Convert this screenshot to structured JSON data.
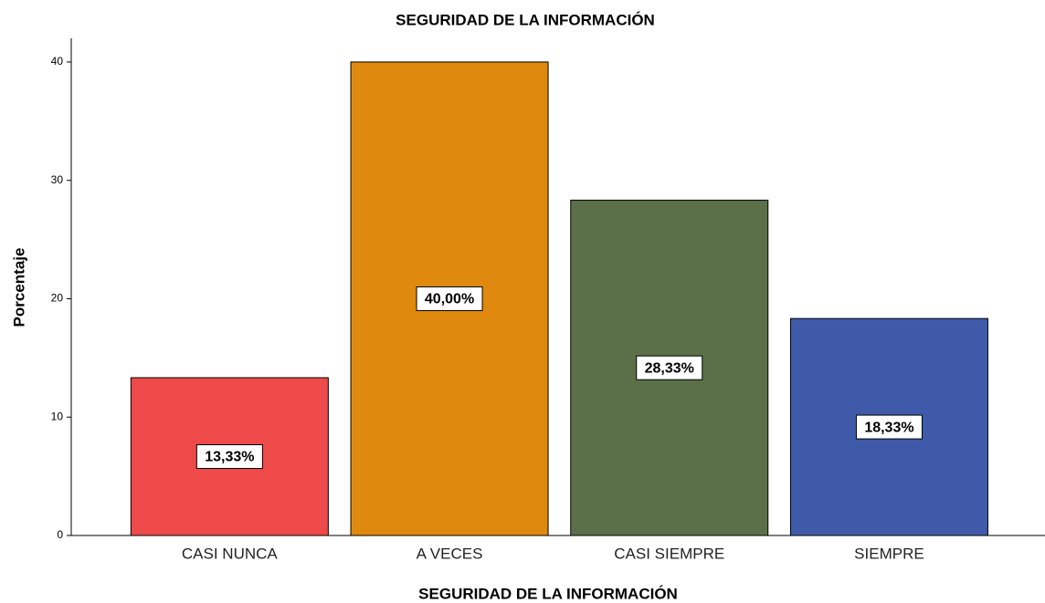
{
  "chart_data": {
    "type": "bar",
    "title": "SEGURIDAD DE LA INFORMACIÓN",
    "x_label": "SEGURIDAD DE LA INFORMACIÓN",
    "y_label": "Porcentaje",
    "categories": [
      "CASI NUNCA",
      "A VECES",
      "CASI SIEMPRE",
      "SIEMPRE"
    ],
    "values": [
      13.33,
      40.0,
      28.33,
      18.33
    ],
    "value_labels": [
      "13,33%",
      "40,00%",
      "28,33%",
      "18,33%"
    ],
    "colors": [
      "#ee4a4a",
      "#e0890f",
      "#5b7048",
      "#3f5aa8"
    ],
    "ylim": [
      0,
      42
    ],
    "yticks": [
      0,
      10,
      20,
      30,
      40
    ],
    "grid": false
  }
}
